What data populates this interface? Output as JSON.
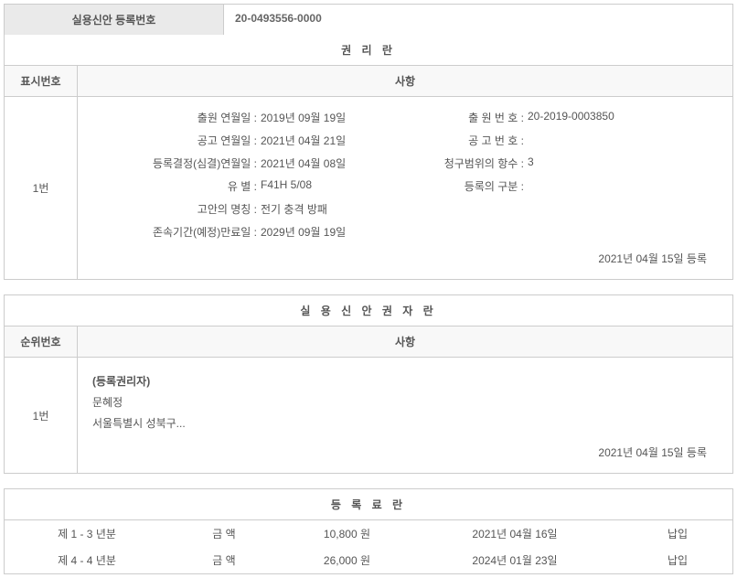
{
  "registration": {
    "label": "실용신안 등록번호",
    "number": "20-0493556-0000"
  },
  "rights_section": {
    "title": "권 리 란",
    "col_left_header": "표시번호",
    "col_right_header": "사항",
    "entry_number": "1번",
    "fields": {
      "application_date_label": "출원 연월일 :",
      "application_date": "2019년 09월 19일",
      "application_no_label": "출 원 번 호 :",
      "application_no": "20-2019-0003850",
      "publication_date_label": "공고 연월일 :",
      "publication_date": "2021년 04월 21일",
      "publication_no_label": "공 고 번 호 :",
      "publication_no": "",
      "decision_date_label": "등록결정(심결)연월일 :",
      "decision_date": "2021년 04월 08일",
      "claims_count_label": "청구범위의 항수 :",
      "claims_count": "3",
      "classification_label": "유 별 :",
      "classification": "F41H 5/08",
      "reg_division_label": "등록의 구분 :",
      "reg_division": "",
      "invention_name_label": "고안의 명칭 :",
      "invention_name": "전기 충격 방패",
      "expiry_date_label": "존속기간(예정)만료일 :",
      "expiry_date": "2029년 09월 19일"
    },
    "footer_date": "2021년 04월 15일 등록"
  },
  "holder_section": {
    "title": "실 용 신 안 권 자 란",
    "col_left_header": "순위번호",
    "col_right_header": "사항",
    "entry_number": "1번",
    "holder_label": "(등록권리자)",
    "holder_name": "문혜정",
    "holder_address": "서울특별시 성북구...",
    "footer_date": "2021년 04월 15일 등록"
  },
  "fee_section": {
    "title": "등 록 료 란",
    "rows": [
      {
        "period": "제 1 - 3 년분",
        "amount_label": "금 액",
        "amount": "10,800 원",
        "date": "2021년 04월 16일",
        "status": "납입"
      },
      {
        "period": "제 4 - 4 년분",
        "amount_label": "금 액",
        "amount": "26,000 원",
        "date": "2024년 01월 23일",
        "status": "납입"
      }
    ]
  }
}
